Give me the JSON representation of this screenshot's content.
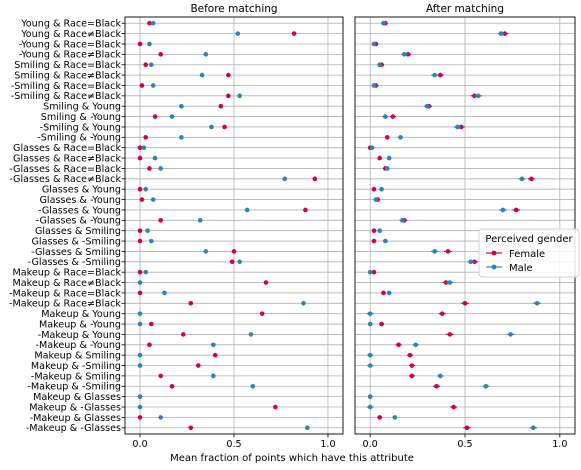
{
  "chart_data": {
    "type": "scatter",
    "xlabel": "Mean fraction of points which have this attribute",
    "xlim": [
      -0.08,
      1.08
    ],
    "xticks": [
      0.0,
      0.5,
      1.0
    ],
    "xtick_labels": [
      "0.0",
      "0.5",
      "1.0"
    ],
    "grid": true,
    "legend": {
      "title": "Perceived gender",
      "placement": "center-right of right panel",
      "entries": [
        {
          "name": "Female",
          "color": "#d1004a"
        },
        {
          "name": "Male",
          "color": "#2b83ba"
        }
      ]
    },
    "categories": [
      "Young & Race=Black",
      "Young & Race≠Black",
      "-Young & Race=Black",
      "-Young & Race≠Black",
      "Smiling & Race=Black",
      "Smiling & Race≠Black",
      "-Smiling & Race=Black",
      "-Smiling & Race≠Black",
      "Smiling & Young",
      "Smiling & -Young",
      "-Smiling & Young",
      "-Smiling & -Young",
      "Glasses & Race=Black",
      "Glasses & Race≠Black",
      "-Glasses & Race=Black",
      "-Glasses & Race≠Black",
      "Glasses & Young",
      "Glasses & -Young",
      "-Glasses & Young",
      "-Glasses & -Young",
      "Glasses & Smiling",
      "Glasses & -Smiling",
      "-Glasses & Smiling",
      "-Glasses & -Smiling",
      "Makeup & Race=Black",
      "Makeup & Race≠Black",
      "-Makeup & Race=Black",
      "-Makeup & Race≠Black",
      "Makeup & Young",
      "Makeup & -Young",
      "-Makeup & Young",
      "-Makeup & -Young",
      "Makeup & Smiling",
      "Makeup & -Smiling",
      "-Makeup & Smiling",
      "-Makeup & -Smiling",
      "Makeup & Glasses",
      "Makeup & -Glasses",
      "-Makeup & Glasses",
      "-Makeup & -Glasses"
    ],
    "panels": [
      {
        "title": "Before matching",
        "series": [
          {
            "name": "Female",
            "color": "#d1004a",
            "values": [
              0.05,
              0.82,
              0.0,
              0.11,
              0.03,
              0.47,
              0.01,
              0.47,
              0.43,
              0.08,
              0.45,
              0.03,
              0.0,
              0.0,
              0.05,
              0.93,
              0.0,
              0.01,
              0.88,
              0.11,
              0.0,
              0.0,
              0.5,
              0.49,
              0.0,
              0.67,
              0.0,
              0.27,
              0.65,
              0.06,
              0.23,
              0.05,
              0.4,
              0.31,
              0.11,
              0.17,
              0.0,
              0.72,
              0.0,
              0.27
            ],
            "err": [
              0.004,
              0.004,
              0.004,
              0.004,
              0.004,
              0.004,
              0.004,
              0.004,
              0.004,
              0.004,
              0.004,
              0.004,
              0.004,
              0.004,
              0.004,
              0.004,
              0.004,
              0.004,
              0.004,
              0.004,
              0.004,
              0.004,
              0.004,
              0.004,
              0.004,
              0.004,
              0.004,
              0.004,
              0.004,
              0.004,
              0.004,
              0.004,
              0.004,
              0.004,
              0.004,
              0.004,
              0.004,
              0.004,
              0.004,
              0.004
            ]
          },
          {
            "name": "Male",
            "color": "#2b83ba",
            "values": [
              0.07,
              0.52,
              0.05,
              0.35,
              0.06,
              0.33,
              0.07,
              0.53,
              0.22,
              0.17,
              0.38,
              0.22,
              0.02,
              0.08,
              0.11,
              0.77,
              0.03,
              0.07,
              0.57,
              0.32,
              0.04,
              0.06,
              0.35,
              0.53,
              0.03,
              0.0,
              0.13,
              0.87,
              0.0,
              0.0,
              0.59,
              0.39,
              0.0,
              0.0,
              0.39,
              0.6,
              0.0,
              0.0,
              0.11,
              0.89
            ],
            "err": [
              0.004,
              0.004,
              0.004,
              0.004,
              0.004,
              0.004,
              0.004,
              0.004,
              0.004,
              0.004,
              0.004,
              0.004,
              0.004,
              0.004,
              0.004,
              0.004,
              0.004,
              0.004,
              0.004,
              0.004,
              0.004,
              0.004,
              0.004,
              0.004,
              0.004,
              0.004,
              0.004,
              0.004,
              0.004,
              0.004,
              0.004,
              0.004,
              0.004,
              0.004,
              0.004,
              0.004,
              0.004,
              0.004,
              0.004,
              0.004
            ]
          }
        ]
      },
      {
        "title": "After matching",
        "series": [
          {
            "name": "Female",
            "color": "#d1004a",
            "values": [
              0.08,
              0.71,
              0.03,
              0.2,
              0.06,
              0.37,
              0.03,
              0.55,
              0.31,
              0.12,
              0.48,
              0.09,
              0.0,
              0.05,
              0.08,
              0.85,
              0.02,
              0.04,
              0.77,
              0.18,
              0.02,
              0.02,
              0.41,
              0.55,
              0.02,
              0.4,
              0.07,
              0.5,
              0.38,
              0.06,
              0.42,
              0.15,
              0.21,
              0.22,
              0.22,
              0.35,
              0.0,
              0.44,
              0.05,
              0.51
            ],
            "err": [
              0.012,
              0.018,
              0.012,
              0.016,
              0.012,
              0.018,
              0.012,
              0.02,
              0.016,
              0.016,
              0.018,
              0.012,
              0.01,
              0.01,
              0.012,
              0.018,
              0.01,
              0.012,
              0.02,
              0.016,
              0.01,
              0.012,
              0.02,
              0.018,
              0.01,
              0.018,
              0.012,
              0.02,
              0.018,
              0.012,
              0.02,
              0.016,
              0.016,
              0.016,
              0.016,
              0.018,
              0.01,
              0.018,
              0.012,
              0.02
            ]
          },
          {
            "name": "Male",
            "color": "#2b83ba",
            "values": [
              0.07,
              0.69,
              0.02,
              0.18,
              0.05,
              0.34,
              0.02,
              0.57,
              0.3,
              0.08,
              0.46,
              0.16,
              0.01,
              0.1,
              0.09,
              0.8,
              0.06,
              0.03,
              0.7,
              0.17,
              0.05,
              0.08,
              0.34,
              0.53,
              0.0,
              0.42,
              0.1,
              0.88,
              0.0,
              0.0,
              0.74,
              0.24,
              0.0,
              0.0,
              0.37,
              0.61,
              0.0,
              0.0,
              0.13,
              0.86
            ],
            "err": [
              0.012,
              0.018,
              0.012,
              0.016,
              0.012,
              0.018,
              0.012,
              0.02,
              0.016,
              0.016,
              0.018,
              0.012,
              0.01,
              0.01,
              0.012,
              0.018,
              0.01,
              0.012,
              0.02,
              0.016,
              0.01,
              0.012,
              0.02,
              0.018,
              0.01,
              0.018,
              0.012,
              0.02,
              0.018,
              0.012,
              0.02,
              0.016,
              0.016,
              0.016,
              0.016,
              0.018,
              0.01,
              0.018,
              0.012,
              0.02
            ]
          }
        ]
      }
    ]
  }
}
